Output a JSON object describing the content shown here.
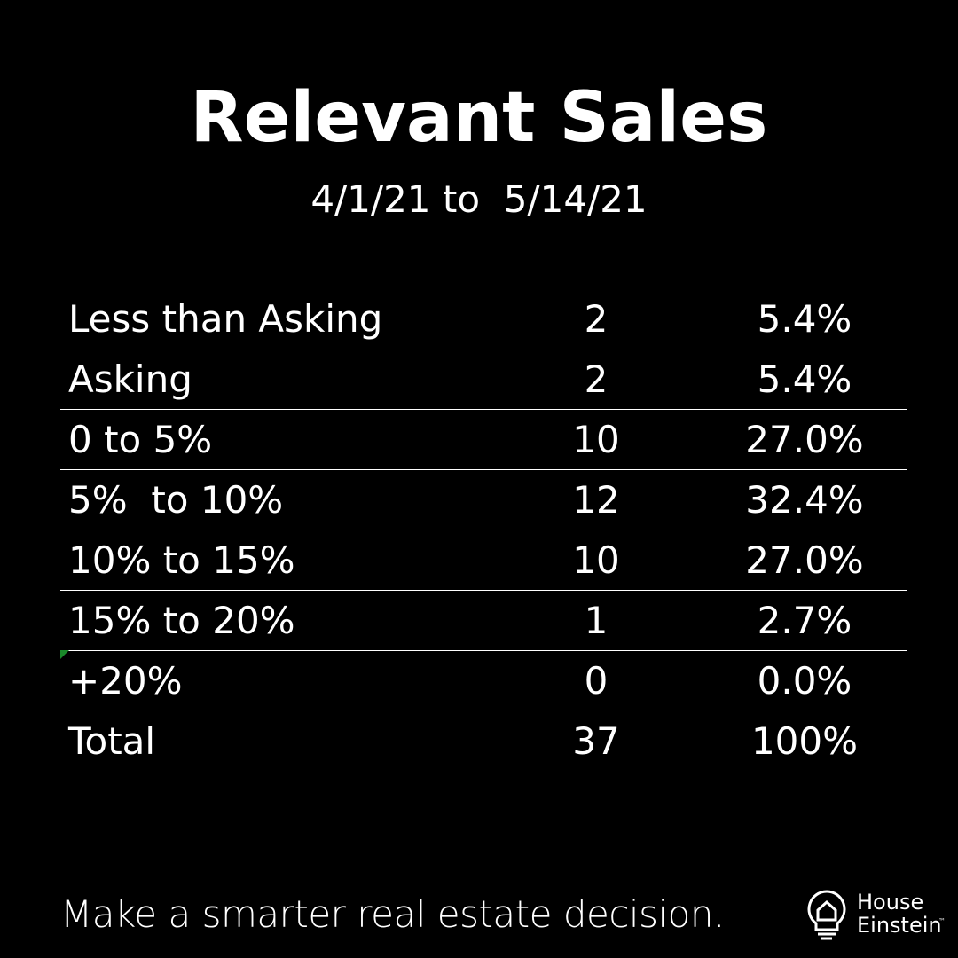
{
  "header": {
    "title": "Relevant Sales",
    "subtitle": "4/1/21 to  5/14/21"
  },
  "table": {
    "rows": [
      [
        "Less than Asking",
        "2",
        "5.4%"
      ],
      [
        "Asking",
        "2",
        "5.4%"
      ],
      [
        "0 to 5%",
        "10",
        "27.0%"
      ],
      [
        "5%  to 10%",
        "12",
        "32.4%"
      ],
      [
        "10% to 15%",
        "10",
        "27.0%"
      ],
      [
        "15% to 20%",
        "1",
        "2.7%"
      ],
      [
        "+20%",
        "0",
        "0.0%"
      ],
      [
        "Total",
        "37",
        "100%"
      ]
    ]
  },
  "footer": {
    "tagline": "Make a smarter real estate decision.",
    "logo": {
      "line1": "House",
      "line2": "Einstein",
      "mark": "™"
    }
  }
}
